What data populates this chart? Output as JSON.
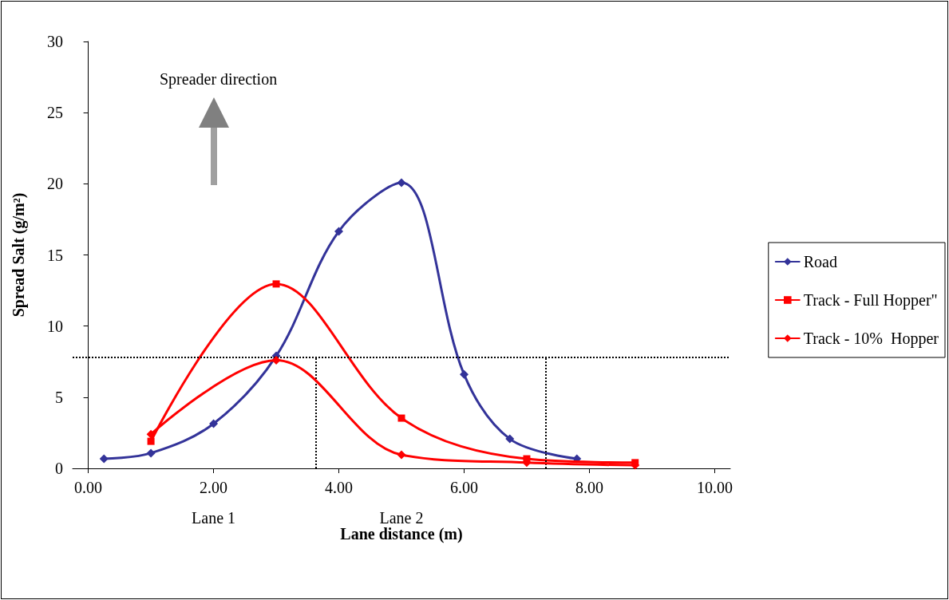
{
  "chart_data": {
    "type": "line",
    "xlabel": "Lane distance (m)",
    "ylabel": "Spread Salt (g/m²)",
    "annotations": [
      "Spreader direction",
      "Lane 1",
      "Lane 2"
    ],
    "xlim": [
      -0.25,
      10.25
    ],
    "xticks": [
      {
        "value": 0,
        "label": "0.00"
      },
      {
        "value": 2,
        "label": "2.00"
      },
      {
        "value": 4,
        "label": "4.00"
      },
      {
        "value": 6,
        "label": "6.00"
      },
      {
        "value": 8,
        "label": "8.00"
      },
      {
        "value": 10,
        "label": "10.00"
      }
    ],
    "ylim": [
      0,
      30
    ],
    "yticks": [
      0,
      5,
      10,
      15,
      20,
      25,
      30
    ],
    "grid": false,
    "legend": "right",
    "line_style": "solid",
    "series": [
      {
        "name": "Road",
        "color": "#333399",
        "marker": "diamond",
        "x": [
          0.25,
          1.0,
          2.0,
          3.0,
          4.0,
          5.0,
          6.0,
          6.73,
          7.8
        ],
        "values": [
          0.67,
          1.07,
          3.14,
          7.9,
          16.66,
          20.08,
          6.6,
          2.07,
          0.67
        ]
      },
      {
        "name": "Track - Full Hopper\"",
        "color": "#ff0000",
        "marker": "square",
        "x": [
          1.0,
          3.0,
          5.0,
          7.0,
          8.73
        ],
        "values": [
          1.9,
          12.96,
          3.53,
          0.67,
          0.4
        ]
      },
      {
        "name": "Track - 10%  Hopper",
        "color": "#ff0000",
        "marker": "diamond",
        "x": [
          1.0,
          3.0,
          5.0,
          7.0,
          8.73
        ],
        "values": [
          2.4,
          7.6,
          0.95,
          0.4,
          0.22
        ]
      }
    ],
    "ref_lines": [
      {
        "axis": "y",
        "value": 7.8,
        "color": "#000000",
        "line_style": "dotted"
      },
      {
        "axis": "x",
        "value": 3.63,
        "color": "#000000",
        "line_style": "dotted"
      },
      {
        "axis": "x",
        "value": 7.3,
        "color": "#000000",
        "line_style": "dotted"
      }
    ]
  }
}
